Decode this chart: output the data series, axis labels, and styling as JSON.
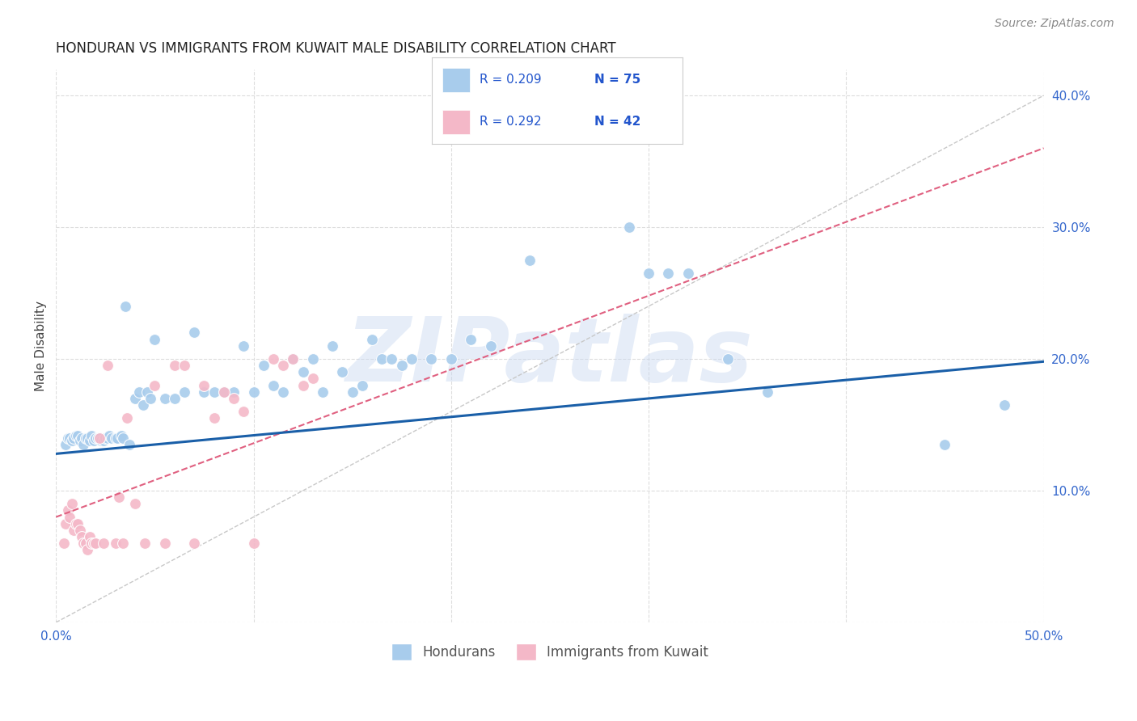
{
  "title": "HONDURAN VS IMMIGRANTS FROM KUWAIT MALE DISABILITY CORRELATION CHART",
  "source": "Source: ZipAtlas.com",
  "ylabel": "Male Disability",
  "watermark": "ZIPatlas",
  "xlim": [
    0.0,
    0.5
  ],
  "ylim": [
    0.0,
    0.42
  ],
  "xticks": [
    0.0,
    0.1,
    0.2,
    0.3,
    0.4,
    0.5
  ],
  "xticklabels": [
    "0.0%",
    "",
    "",
    "",
    "",
    "50.0%"
  ],
  "yticks": [
    0.0,
    0.1,
    0.2,
    0.3,
    0.4
  ],
  "yticklabels": [
    "",
    "10.0%",
    "20.0%",
    "30.0%",
    "40.0%"
  ],
  "blue_color": "#A8CCEC",
  "pink_color": "#F4B8C8",
  "blue_line_color": "#1A5FA8",
  "pink_line_color": "#E06080",
  "dashed_color": "#C8C8C8",
  "grid_color": "#DDDDDD",
  "legend_R1": "R = 0.209",
  "legend_N1": "N = 75",
  "legend_R2": "R = 0.292",
  "legend_N2": "N = 42",
  "legend_label1": "Hondurans",
  "legend_label2": "Immigrants from Kuwait",
  "blue_scatter_x": [
    0.005,
    0.006,
    0.007,
    0.008,
    0.009,
    0.01,
    0.011,
    0.012,
    0.013,
    0.014,
    0.015,
    0.016,
    0.017,
    0.018,
    0.019,
    0.02,
    0.021,
    0.022,
    0.023,
    0.024,
    0.025,
    0.026,
    0.027,
    0.028,
    0.03,
    0.031,
    0.033,
    0.034,
    0.035,
    0.037,
    0.04,
    0.042,
    0.044,
    0.046,
    0.048,
    0.05,
    0.055,
    0.06,
    0.065,
    0.07,
    0.075,
    0.08,
    0.085,
    0.09,
    0.095,
    0.1,
    0.105,
    0.11,
    0.115,
    0.12,
    0.125,
    0.13,
    0.135,
    0.14,
    0.145,
    0.15,
    0.155,
    0.16,
    0.165,
    0.17,
    0.175,
    0.18,
    0.19,
    0.2,
    0.21,
    0.22,
    0.24,
    0.29,
    0.3,
    0.31,
    0.32,
    0.34,
    0.36,
    0.45,
    0.48
  ],
  "blue_scatter_y": [
    0.135,
    0.14,
    0.14,
    0.138,
    0.14,
    0.142,
    0.142,
    0.138,
    0.14,
    0.135,
    0.14,
    0.14,
    0.138,
    0.142,
    0.138,
    0.14,
    0.14,
    0.14,
    0.138,
    0.138,
    0.14,
    0.14,
    0.142,
    0.14,
    0.14,
    0.14,
    0.142,
    0.14,
    0.24,
    0.135,
    0.17,
    0.175,
    0.165,
    0.175,
    0.17,
    0.215,
    0.17,
    0.17,
    0.175,
    0.22,
    0.175,
    0.175,
    0.175,
    0.175,
    0.21,
    0.175,
    0.195,
    0.18,
    0.175,
    0.2,
    0.19,
    0.2,
    0.175,
    0.21,
    0.19,
    0.175,
    0.18,
    0.215,
    0.2,
    0.2,
    0.195,
    0.2,
    0.2,
    0.2,
    0.215,
    0.21,
    0.275,
    0.3,
    0.265,
    0.265,
    0.265,
    0.2,
    0.175,
    0.135,
    0.165
  ],
  "pink_scatter_x": [
    0.004,
    0.005,
    0.006,
    0.007,
    0.008,
    0.009,
    0.01,
    0.011,
    0.012,
    0.013,
    0.014,
    0.015,
    0.016,
    0.017,
    0.018,
    0.019,
    0.02,
    0.022,
    0.024,
    0.026,
    0.03,
    0.032,
    0.034,
    0.036,
    0.04,
    0.045,
    0.05,
    0.055,
    0.06,
    0.065,
    0.07,
    0.075,
    0.08,
    0.085,
    0.09,
    0.095,
    0.1,
    0.11,
    0.115,
    0.12,
    0.125,
    0.13
  ],
  "pink_scatter_y": [
    0.06,
    0.075,
    0.085,
    0.08,
    0.09,
    0.07,
    0.075,
    0.075,
    0.07,
    0.065,
    0.06,
    0.06,
    0.055,
    0.065,
    0.06,
    0.06,
    0.06,
    0.14,
    0.06,
    0.195,
    0.06,
    0.095,
    0.06,
    0.155,
    0.09,
    0.06,
    0.18,
    0.06,
    0.195,
    0.195,
    0.06,
    0.18,
    0.155,
    0.175,
    0.17,
    0.16,
    0.06,
    0.2,
    0.195,
    0.2,
    0.18,
    0.185
  ],
  "blue_line_x": [
    0.0,
    0.5
  ],
  "blue_line_y": [
    0.128,
    0.198
  ],
  "pink_line_x": [
    0.0,
    0.5
  ],
  "pink_line_y": [
    0.08,
    0.36
  ],
  "dashed_line_x": [
    0.0,
    0.5
  ],
  "dashed_line_y": [
    0.0,
    0.4
  ]
}
